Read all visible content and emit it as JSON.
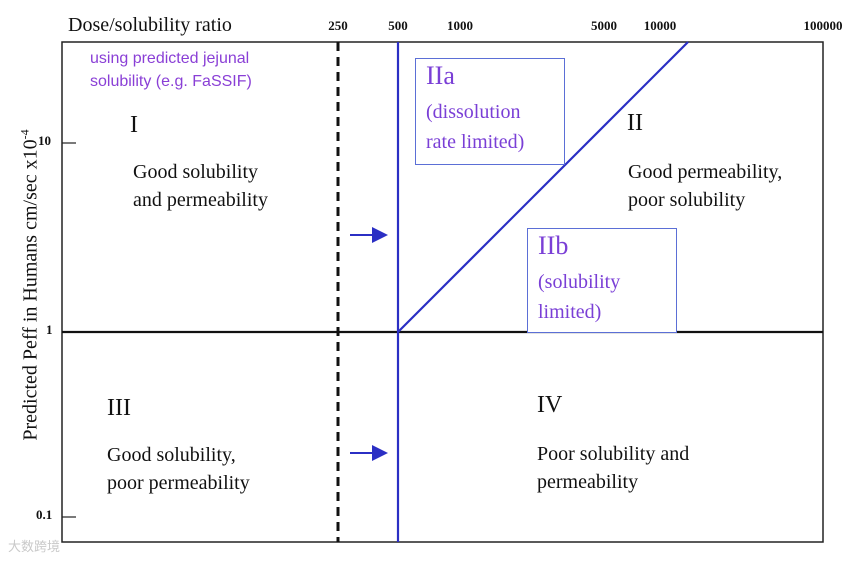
{
  "top_axis": {
    "title": "Dose/solubility ratio",
    "ticks": [
      "250",
      "500",
      "1000",
      "5000",
      "10000",
      "100000"
    ]
  },
  "left_axis": {
    "title_main": "Predicted  Peff in Humans cm/sec x10",
    "title_exp": "-4",
    "ticks": [
      "10",
      "1",
      "0.1"
    ]
  },
  "note": {
    "line1": "using predicted jejunal",
    "line2": "solubility (e.g. FaSSIF)"
  },
  "classes": {
    "I": {
      "id": "I",
      "line1": "Good solubility",
      "line2": "and permeability"
    },
    "II": {
      "id": "II",
      "line1": "Good permeability,",
      "line2": "poor solubility"
    },
    "III": {
      "id": "III",
      "line1": "Good solubility,",
      "line2": "poor permeability"
    },
    "IV": {
      "id": "IV",
      "line1": "Poor solubility and",
      "line2": "permeability"
    }
  },
  "subclasses": {
    "IIa": {
      "id": "IIa",
      "line1": "(dissolution",
      "line2": "rate limited)"
    },
    "IIb": {
      "id": "IIb",
      "line1": "(solubility",
      "line2": "limited)"
    }
  },
  "watermark": "大数跨境",
  "colors": {
    "blue_line": "#2b2fc4",
    "purple_text": "#7a3fd6",
    "box_border": "#5b6fd6"
  }
}
